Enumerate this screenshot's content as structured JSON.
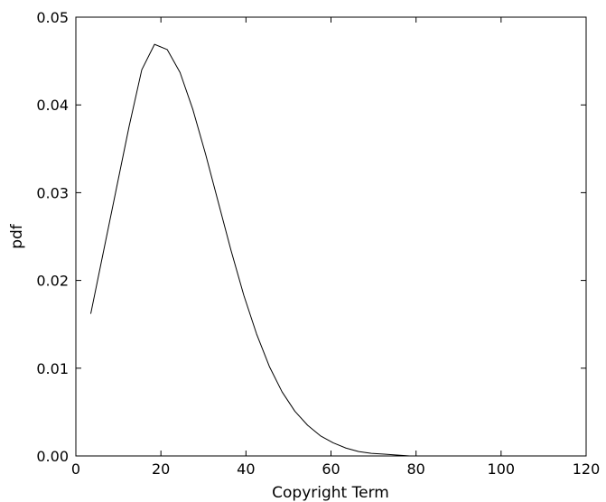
{
  "chart_data": {
    "type": "line",
    "title": "",
    "xlabel": "Copyright Term",
    "ylabel": "pdf",
    "xlim": [
      0,
      120
    ],
    "ylim": [
      0,
      0.05
    ],
    "x_ticks": [
      "0",
      "20",
      "40",
      "60",
      "80",
      "100",
      "120"
    ],
    "y_ticks": [
      "0.00",
      "0.01",
      "0.02",
      "0.03",
      "0.04",
      "0.05"
    ],
    "grid": false,
    "legend": "none",
    "series": [
      {
        "color": "#000000",
        "x": [
          3.5,
          6.5,
          9.5,
          12.5,
          15.5,
          18.5,
          21.5,
          24.5,
          27.5,
          30.5,
          33.5,
          36.5,
          39.5,
          42.5,
          45.5,
          48.5,
          51.5,
          54.5,
          57.5,
          60.5,
          63.5,
          66.5,
          69.5,
          72.5,
          75.5,
          78.5,
          81.5
        ],
        "y": [
          0.0162,
          0.0233,
          0.0304,
          0.0375,
          0.044,
          0.0469,
          0.0463,
          0.0437,
          0.0395,
          0.0344,
          0.0289,
          0.0234,
          0.0183,
          0.0139,
          0.0102,
          0.0073,
          0.0051,
          0.0035,
          0.0023,
          0.0015,
          0.0009,
          0.0005,
          0.0003,
          0.0002,
          0.0001,
          0.0,
          0.0
        ]
      }
    ]
  }
}
